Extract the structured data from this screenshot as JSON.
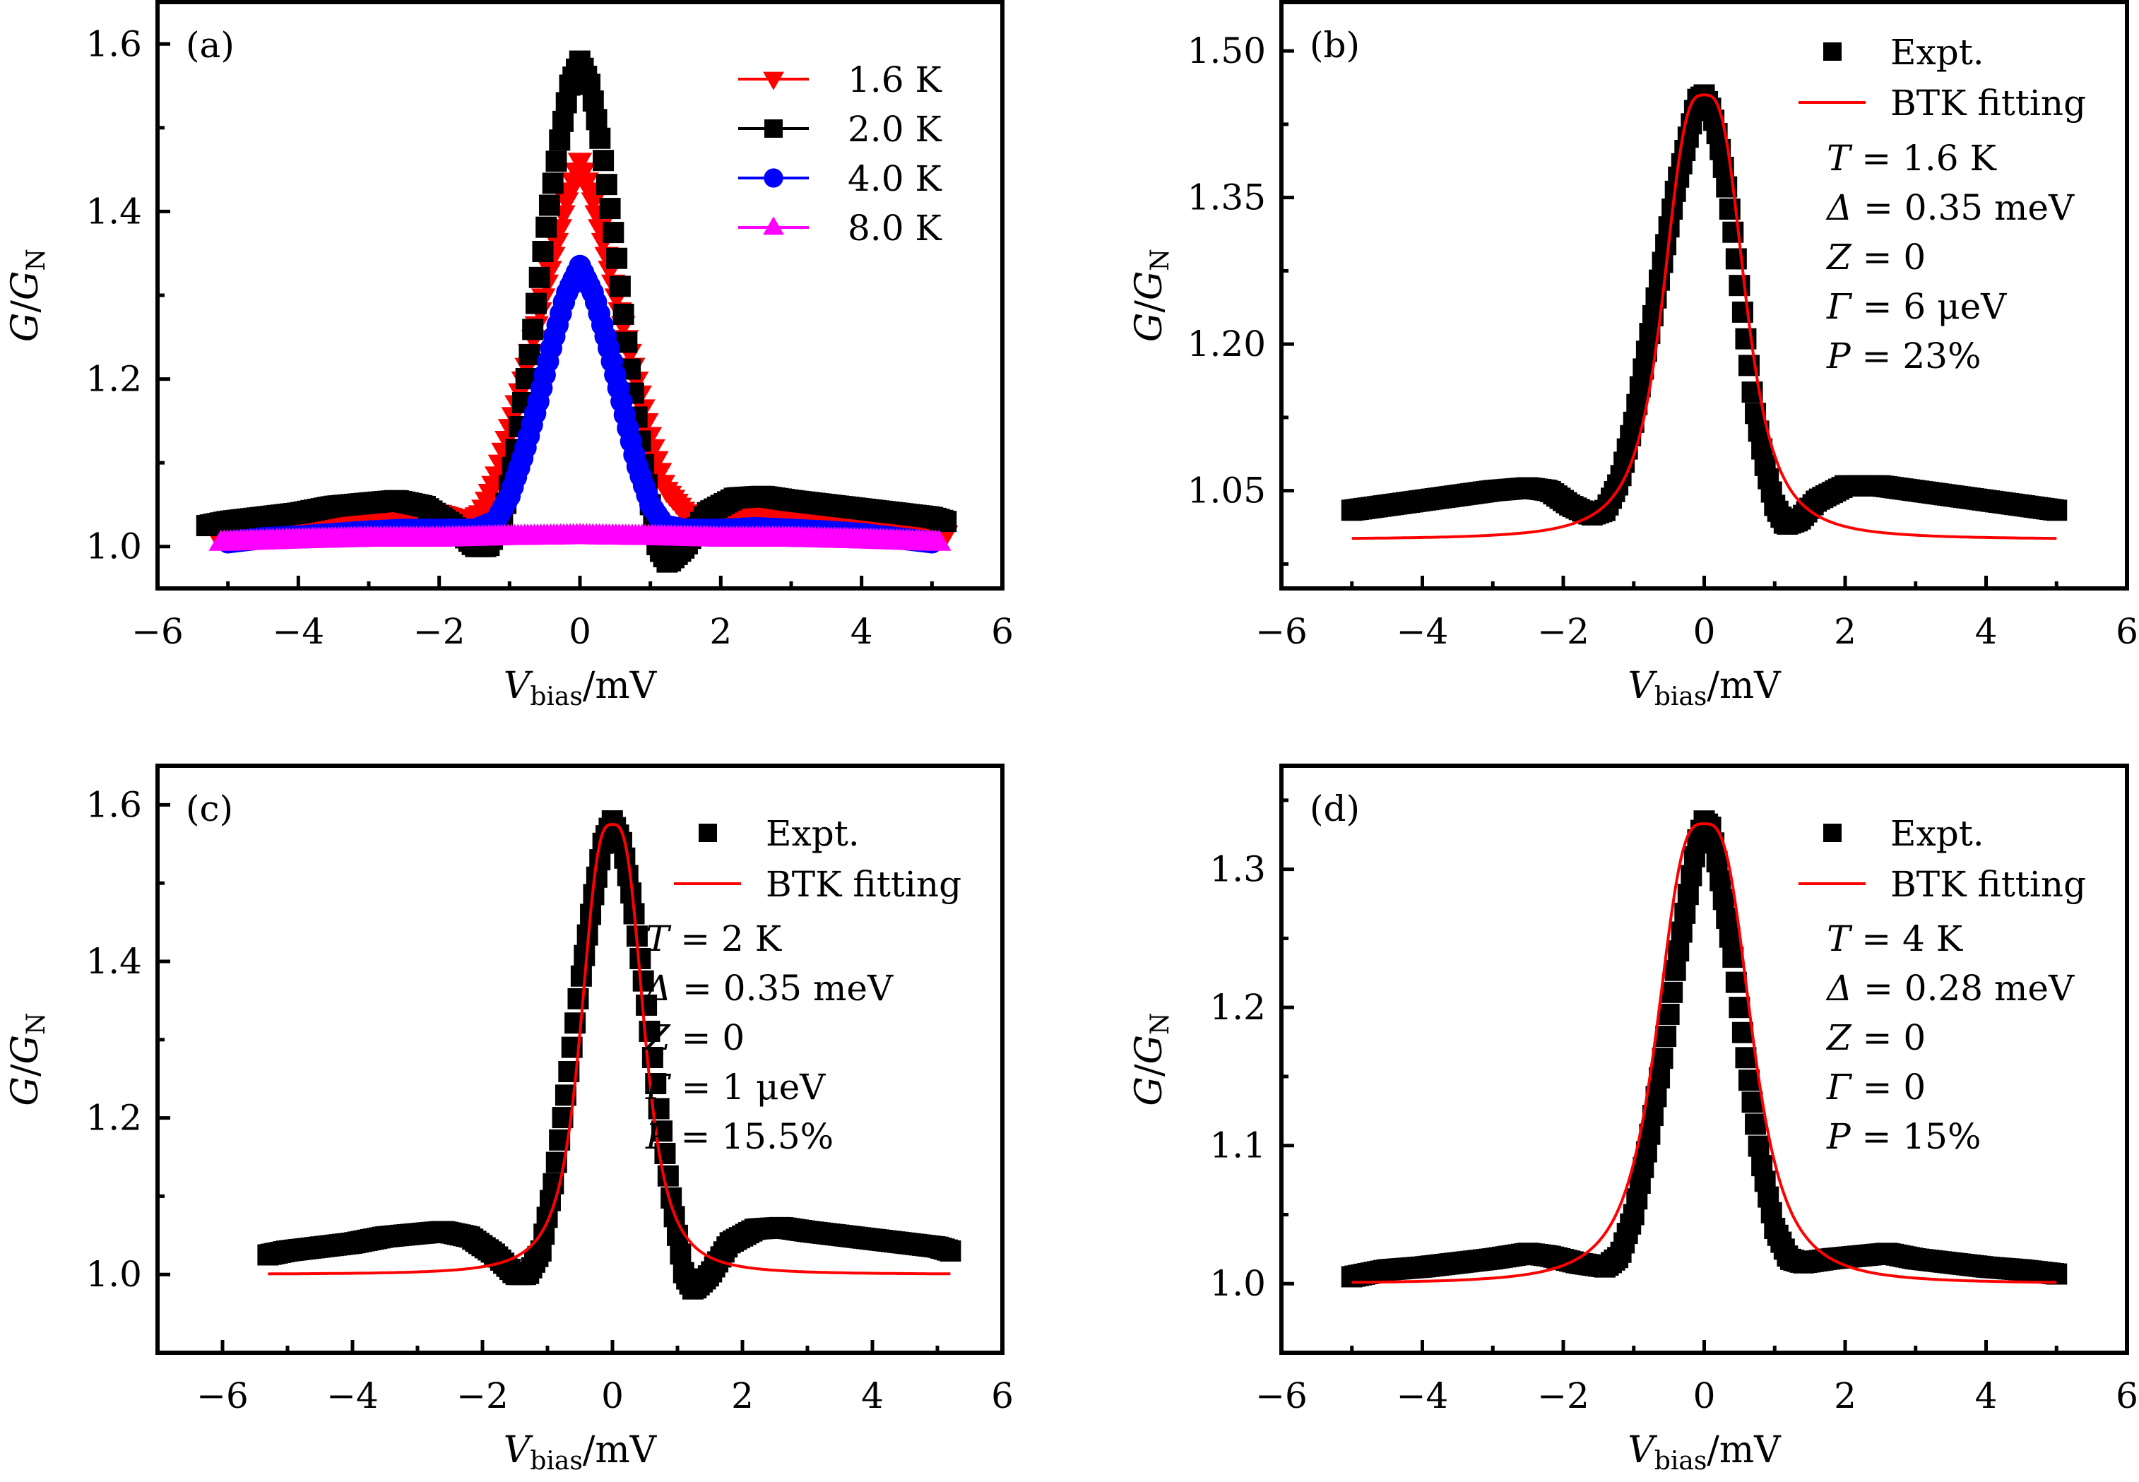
{
  "chart_data": [
    {
      "panel": "a",
      "type": "scatter",
      "panel_label": "(a)",
      "xlabel": {
        "main": "V",
        "sub": "bias",
        "unit": "/mV"
      },
      "ylabel": {
        "main": "G",
        "sep": "/",
        "main2": "G",
        "sub": "N"
      },
      "xlim": [
        -6,
        6
      ],
      "ylim": [
        0.95,
        1.65
      ],
      "xticks": [
        -6,
        -4,
        -2,
        0,
        2,
        4,
        6
      ],
      "xtick_labels": [
        "−6",
        "−4",
        "−2",
        "0",
        "2",
        "4",
        "6"
      ],
      "yticks": [
        1.0,
        1.2,
        1.4,
        1.6
      ],
      "ytick_labels": [
        "1.0",
        "1.2",
        "1.4",
        "1.6"
      ],
      "legend_position": "top-right",
      "series": [
        {
          "name": "1.6 K",
          "color": "#ff0000",
          "marker": "triangle-down",
          "draw_order": 1,
          "x": [
            -5.2,
            -4.5,
            -4.0,
            -3.5,
            -3.0,
            -2.5,
            -2.0,
            -1.6,
            -1.4,
            -1.2,
            -1.0,
            -0.8,
            -0.6,
            -0.4,
            -0.2,
            0.0,
            0.2,
            0.4,
            0.6,
            0.8,
            1.0,
            1.2,
            1.5,
            2.0,
            2.5,
            3.0,
            3.5,
            4.0,
            4.5,
            5.2
          ],
          "y": [
            1.02,
            1.025,
            1.03,
            1.035,
            1.04,
            1.04,
            1.04,
            1.03,
            1.04,
            1.08,
            1.14,
            1.2,
            1.27,
            1.34,
            1.41,
            1.46,
            1.41,
            1.34,
            1.27,
            1.2,
            1.13,
            1.07,
            1.04,
            1.04,
            1.04,
            1.035,
            1.03,
            1.025,
            1.02,
            1.015
          ]
        },
        {
          "name": "2.0 K",
          "color": "#000000",
          "marker": "square",
          "draw_order": 2,
          "x": [
            -5.3,
            -5.0,
            -4.5,
            -4.0,
            -3.5,
            -3.0,
            -2.6,
            -2.2,
            -1.8,
            -1.5,
            -1.3,
            -1.1,
            -0.9,
            -0.7,
            -0.5,
            -0.3,
            -0.15,
            0.0,
            0.15,
            0.3,
            0.5,
            0.7,
            0.9,
            1.1,
            1.25,
            1.5,
            1.8,
            2.2,
            2.6,
            3.0,
            3.5,
            4.0,
            4.5,
            5.0,
            5.2
          ],
          "y": [
            1.025,
            1.03,
            1.035,
            1.04,
            1.048,
            1.052,
            1.055,
            1.048,
            1.025,
            1.0,
            1.0,
            1.03,
            1.12,
            1.24,
            1.37,
            1.48,
            1.55,
            1.58,
            1.55,
            1.48,
            1.36,
            1.22,
            1.1,
            1.0,
            0.98,
            1.0,
            1.04,
            1.058,
            1.06,
            1.055,
            1.05,
            1.045,
            1.04,
            1.035,
            1.03
          ]
        },
        {
          "name": "4.0 K",
          "color": "#0000ff",
          "marker": "circle",
          "draw_order": 3,
          "x": [
            -5.0,
            -4.5,
            -4.0,
            -3.5,
            -3.0,
            -2.5,
            -2.0,
            -1.5,
            -1.2,
            -1.0,
            -0.8,
            -0.6,
            -0.4,
            -0.2,
            0.0,
            0.2,
            0.4,
            0.6,
            0.8,
            1.0,
            1.2,
            1.5,
            2.0,
            2.5,
            3.0,
            3.5,
            4.0,
            4.5,
            5.0
          ],
          "y": [
            1.005,
            1.01,
            1.012,
            1.015,
            1.018,
            1.02,
            1.02,
            1.02,
            1.03,
            1.06,
            1.11,
            1.17,
            1.24,
            1.3,
            1.335,
            1.3,
            1.24,
            1.17,
            1.1,
            1.05,
            1.025,
            1.02,
            1.02,
            1.022,
            1.02,
            1.018,
            1.015,
            1.01,
            1.005
          ]
        },
        {
          "name": "8.0 K",
          "color": "#ff00ff",
          "marker": "triangle-up",
          "draw_order": 4,
          "x": [
            -5.1,
            -4.0,
            -3.0,
            -2.0,
            -1.0,
            0.0,
            1.0,
            2.0,
            3.0,
            4.0,
            5.1
          ],
          "y": [
            1.005,
            1.008,
            1.01,
            1.01,
            1.012,
            1.013,
            1.012,
            1.01,
            1.01,
            1.008,
            1.005
          ]
        }
      ]
    },
    {
      "panel": "b",
      "type": "scatter",
      "panel_label": "(b)",
      "xlabel": {
        "main": "V",
        "sub": "bias",
        "unit": "/mV"
      },
      "ylabel": {
        "main": "G",
        "sep": "/",
        "main2": "G",
        "sub": "N"
      },
      "xlim": [
        -6,
        6
      ],
      "ylim": [
        0.95,
        1.55
      ],
      "xticks": [
        -6,
        -4,
        -2,
        0,
        2,
        4,
        6
      ],
      "xtick_labels": [
        "−6",
        "−4",
        "−2",
        "0",
        "2",
        "4",
        "6"
      ],
      "yticks": [
        1.05,
        1.2,
        1.35,
        1.5
      ],
      "ytick_labels": [
        "1.05",
        "1.20",
        "1.35",
        "1.50"
      ],
      "legend_position": "top-right",
      "legend": [
        {
          "label": "Expt.",
          "kind": "marker"
        },
        {
          "label": "BTK fitting",
          "kind": "line"
        }
      ],
      "annotations": {
        "T": "1.6 K",
        "Delta": "0.35 meV",
        "Z": "0",
        "Gamma": "6 μeV",
        "P": "23%"
      },
      "series": [
        {
          "name": "Expt.",
          "color": "#000000",
          "marker": "square",
          "x": [
            -5.0,
            -4.5,
            -4.0,
            -3.5,
            -3.0,
            -2.5,
            -2.2,
            -1.9,
            -1.6,
            -1.4,
            -1.2,
            -1.0,
            -0.8,
            -0.6,
            -0.4,
            -0.2,
            -0.1,
            0.0,
            0.1,
            0.2,
            0.3,
            0.4,
            0.5,
            0.6,
            0.7,
            0.85,
            1.0,
            1.15,
            1.35,
            1.6,
            2.0,
            2.5,
            3.0,
            3.5,
            4.0,
            4.5,
            5.0
          ],
          "y": [
            1.03,
            1.035,
            1.04,
            1.045,
            1.05,
            1.053,
            1.05,
            1.035,
            1.025,
            1.03,
            1.06,
            1.12,
            1.2,
            1.28,
            1.36,
            1.42,
            1.45,
            1.455,
            1.44,
            1.41,
            1.37,
            1.32,
            1.26,
            1.2,
            1.14,
            1.08,
            1.035,
            1.015,
            1.02,
            1.04,
            1.055,
            1.055,
            1.05,
            1.045,
            1.04,
            1.035,
            1.03
          ]
        },
        {
          "name": "BTK fitting",
          "color": "#ff0000",
          "marker": "line",
          "peak": 1.455,
          "base": 1.0,
          "width": 0.62,
          "tail": 0.012,
          "tail_w": 1.2,
          "xrange": [
            -5.0,
            5.0
          ]
        }
      ]
    },
    {
      "panel": "c",
      "type": "scatter",
      "panel_label": "(c)",
      "xlabel": {
        "main": "V",
        "sub": "bias",
        "unit": "/mV"
      },
      "ylabel": {
        "main": "G",
        "sep": "/",
        "main2": "G",
        "sub": "N"
      },
      "xlim": [
        -7,
        6
      ],
      "ylim": [
        0.9,
        1.65
      ],
      "xticks": [
        -6,
        -4,
        -2,
        0,
        2,
        4,
        6
      ],
      "xtick_labels": [
        "−6",
        "−4",
        "−2",
        "0",
        "2",
        "4",
        "6"
      ],
      "yticks": [
        1.0,
        1.2,
        1.4,
        1.6
      ],
      "ytick_labels": [
        "1.0",
        "1.2",
        "1.4",
        "1.6"
      ],
      "legend_position": "top-right",
      "legend": [
        {
          "label": "Expt.",
          "kind": "marker"
        },
        {
          "label": "BTK fitting",
          "kind": "line"
        }
      ],
      "annotations": {
        "T": "2 K",
        "Delta": "0.35 meV",
        "Z": "0",
        "Gamma": "1 μeV",
        "P": "15.5%"
      },
      "series": [
        {
          "name": "Expt.",
          "color": "#000000",
          "marker": "square",
          "x": [
            -5.3,
            -5.0,
            -4.5,
            -4.0,
            -3.5,
            -3.0,
            -2.6,
            -2.2,
            -1.8,
            -1.5,
            -1.3,
            -1.1,
            -0.9,
            -0.7,
            -0.5,
            -0.3,
            -0.15,
            0.0,
            0.15,
            0.3,
            0.5,
            0.7,
            0.9,
            1.1,
            1.25,
            1.5,
            1.8,
            2.2,
            2.6,
            3.0,
            3.5,
            4.0,
            4.5,
            5.0,
            5.2
          ],
          "y": [
            1.025,
            1.03,
            1.035,
            1.04,
            1.048,
            1.052,
            1.055,
            1.048,
            1.025,
            1.0,
            1.0,
            1.03,
            1.12,
            1.24,
            1.37,
            1.48,
            1.55,
            1.58,
            1.55,
            1.48,
            1.36,
            1.22,
            1.1,
            1.0,
            0.98,
            1.0,
            1.04,
            1.058,
            1.06,
            1.055,
            1.05,
            1.045,
            1.04,
            1.035,
            1.03
          ]
        },
        {
          "name": "BTK fitting",
          "color": "#ff0000",
          "marker": "line",
          "peak": 1.575,
          "base": 1.0,
          "width": 0.52,
          "tail": 0.012,
          "tail_w": 1.0,
          "xrange": [
            -5.3,
            5.2
          ]
        }
      ]
    },
    {
      "panel": "d",
      "type": "scatter",
      "panel_label": "(d)",
      "xlabel": {
        "main": "V",
        "sub": "bias",
        "unit": "/mV"
      },
      "ylabel": {
        "main": "G",
        "sep": "/",
        "main2": "G",
        "sub": "N"
      },
      "xlim": [
        -6,
        6
      ],
      "ylim": [
        0.95,
        1.375
      ],
      "xticks": [
        -6,
        -4,
        -2,
        0,
        2,
        4,
        6
      ],
      "xtick_labels": [
        "−6",
        "−4",
        "−2",
        "0",
        "2",
        "4",
        "6"
      ],
      "yticks": [
        1.0,
        1.1,
        1.2,
        1.3
      ],
      "ytick_labels": [
        "1.0",
        "1.1",
        "1.2",
        "1.3"
      ],
      "legend_position": "top-right",
      "legend": [
        {
          "label": "Expt.",
          "kind": "marker"
        },
        {
          "label": "BTK fitting",
          "kind": "line"
        }
      ],
      "annotations": {
        "T": "4 K",
        "Delta": "0.28 meV",
        "Z": "0",
        "Gamma": "0",
        "P": "15%"
      },
      "series": [
        {
          "name": "Expt.",
          "color": "#000000",
          "marker": "square",
          "x": [
            -5.0,
            -4.5,
            -4.0,
            -3.5,
            -3.0,
            -2.5,
            -2.2,
            -1.8,
            -1.4,
            -1.2,
            -1.0,
            -0.8,
            -0.6,
            -0.4,
            -0.2,
            -0.1,
            0.0,
            0.1,
            0.2,
            0.4,
            0.6,
            0.8,
            1.0,
            1.2,
            1.4,
            1.8,
            2.2,
            2.6,
            3.0,
            3.5,
            4.0,
            4.5,
            5.0
          ],
          "y": [
            1.005,
            1.01,
            1.012,
            1.015,
            1.018,
            1.022,
            1.02,
            1.015,
            1.012,
            1.02,
            1.05,
            1.1,
            1.16,
            1.23,
            1.29,
            1.32,
            1.335,
            1.33,
            1.3,
            1.24,
            1.16,
            1.09,
            1.04,
            1.018,
            1.015,
            1.018,
            1.02,
            1.022,
            1.018,
            1.015,
            1.012,
            1.01,
            1.007
          ]
        },
        {
          "name": "BTK fitting",
          "color": "#ff0000",
          "marker": "line",
          "peak": 1.333,
          "base": 1.0,
          "width": 0.72,
          "tail": 0.004,
          "tail_w": 1.3,
          "xrange": [
            -5.0,
            5.0
          ]
        }
      ]
    }
  ]
}
